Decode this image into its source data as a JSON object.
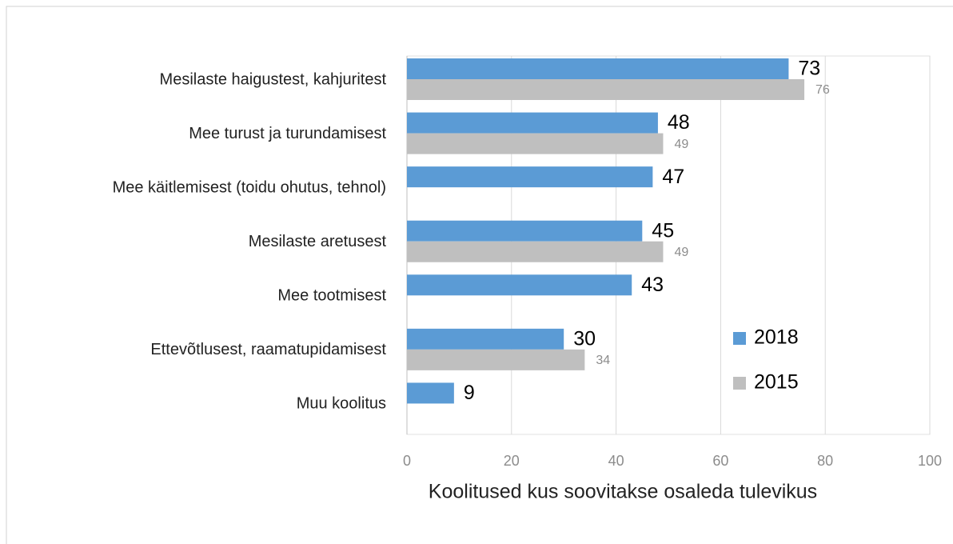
{
  "chart_data": {
    "type": "bar",
    "orientation": "horizontal",
    "xlabel": "Koolitused kus soovitakse osaleda tulevikus",
    "categories": [
      "Mesilaste haigustest, kahjuritest",
      "Mee turust ja turundamisest",
      "Mee käitlemisest (toidu ohutus, tehnol)",
      "Mesilaste aretusest",
      "Mee tootmisest",
      "Ettevõtlusest, raamatupidamisest",
      "Muu koolitus"
    ],
    "series": [
      {
        "name": "2018",
        "color": "#5b9bd5",
        "values": [
          73,
          48,
          47,
          45,
          43,
          30,
          9
        ]
      },
      {
        "name": "2015",
        "color": "#bfbfbf",
        "values": [
          76,
          49,
          null,
          49,
          null,
          34,
          null
        ]
      }
    ],
    "xlim": [
      0,
      100
    ],
    "xticks": [
      0,
      20,
      40,
      60,
      80,
      100
    ],
    "grid": true,
    "legend": "right"
  }
}
